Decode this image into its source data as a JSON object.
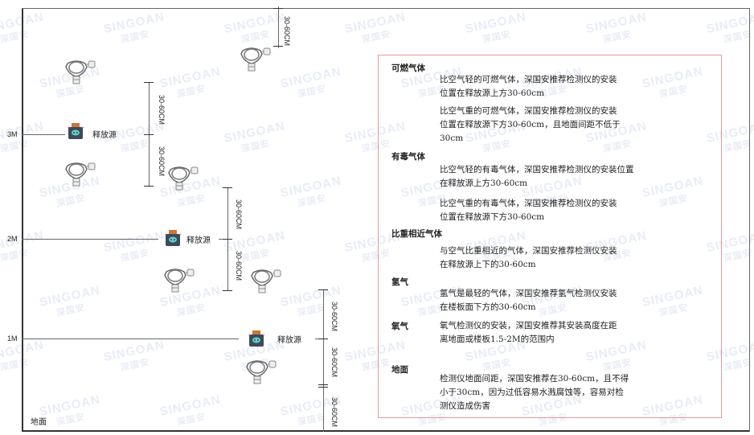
{
  "watermark": {
    "brand": "SINGOAN",
    "cn": "深国安"
  },
  "levels": {
    "m3": "3M",
    "m2": "2M",
    "m1": "1M"
  },
  "ground_label": "地面",
  "source_label": "释放源",
  "dimension_label": "30-60CM",
  "notes": {
    "combustible": {
      "title": "可燃气体",
      "lighter": [
        "比空气轻的可燃气体，深国安推荐检测仪的安装",
        "位置在释放源上方30-60cm"
      ],
      "heavier": [
        "比空气重的可燃气体，深国安推荐检测仪的安装",
        "位置在释放源下方30-60cm，且地面间距不低于",
        "30cm"
      ]
    },
    "toxic": {
      "title": "有毒气体",
      "lighter": [
        "比空气轻的有毒气体，深国安推荐检测仪的安装位置",
        "在释放源上方30-60cm"
      ],
      "heavier": [
        "比空气重的有毒气体，深国安推荐检测仪的安装",
        "位置在释放源下方30-60cm"
      ]
    },
    "similar": {
      "title": "比重相近气体",
      "text": [
        "与空气比重相近的气体，深国安推荐检测仪安装",
        "在释放源上下的30-60cm"
      ]
    },
    "hydrogen": {
      "title": "氢气",
      "text": [
        "氢气是最轻的气体，深国安推荐氢气检测仪安装",
        "在楼板面下方的30-60cm"
      ]
    },
    "oxygen": {
      "title": "氧气",
      "text": [
        "氧气检测仪的安装，深国安推荐其安装高度在距",
        "离地面或楼板1.5-2M的范围内"
      ]
    },
    "ground": {
      "title": "地面",
      "text": [
        "检测仪地面间距，深国安推荐在30-60cm，且不得",
        "小于30cm，因为过低容易水溅腐蚀等，容易对检",
        "测仪造成伤害"
      ]
    }
  },
  "colors": {
    "frame": "#333333",
    "note_border": "#e89a9a",
    "source_body": "#3d4a5a",
    "source_cap": "#c8783a",
    "source_face": "#5fd0c8"
  }
}
